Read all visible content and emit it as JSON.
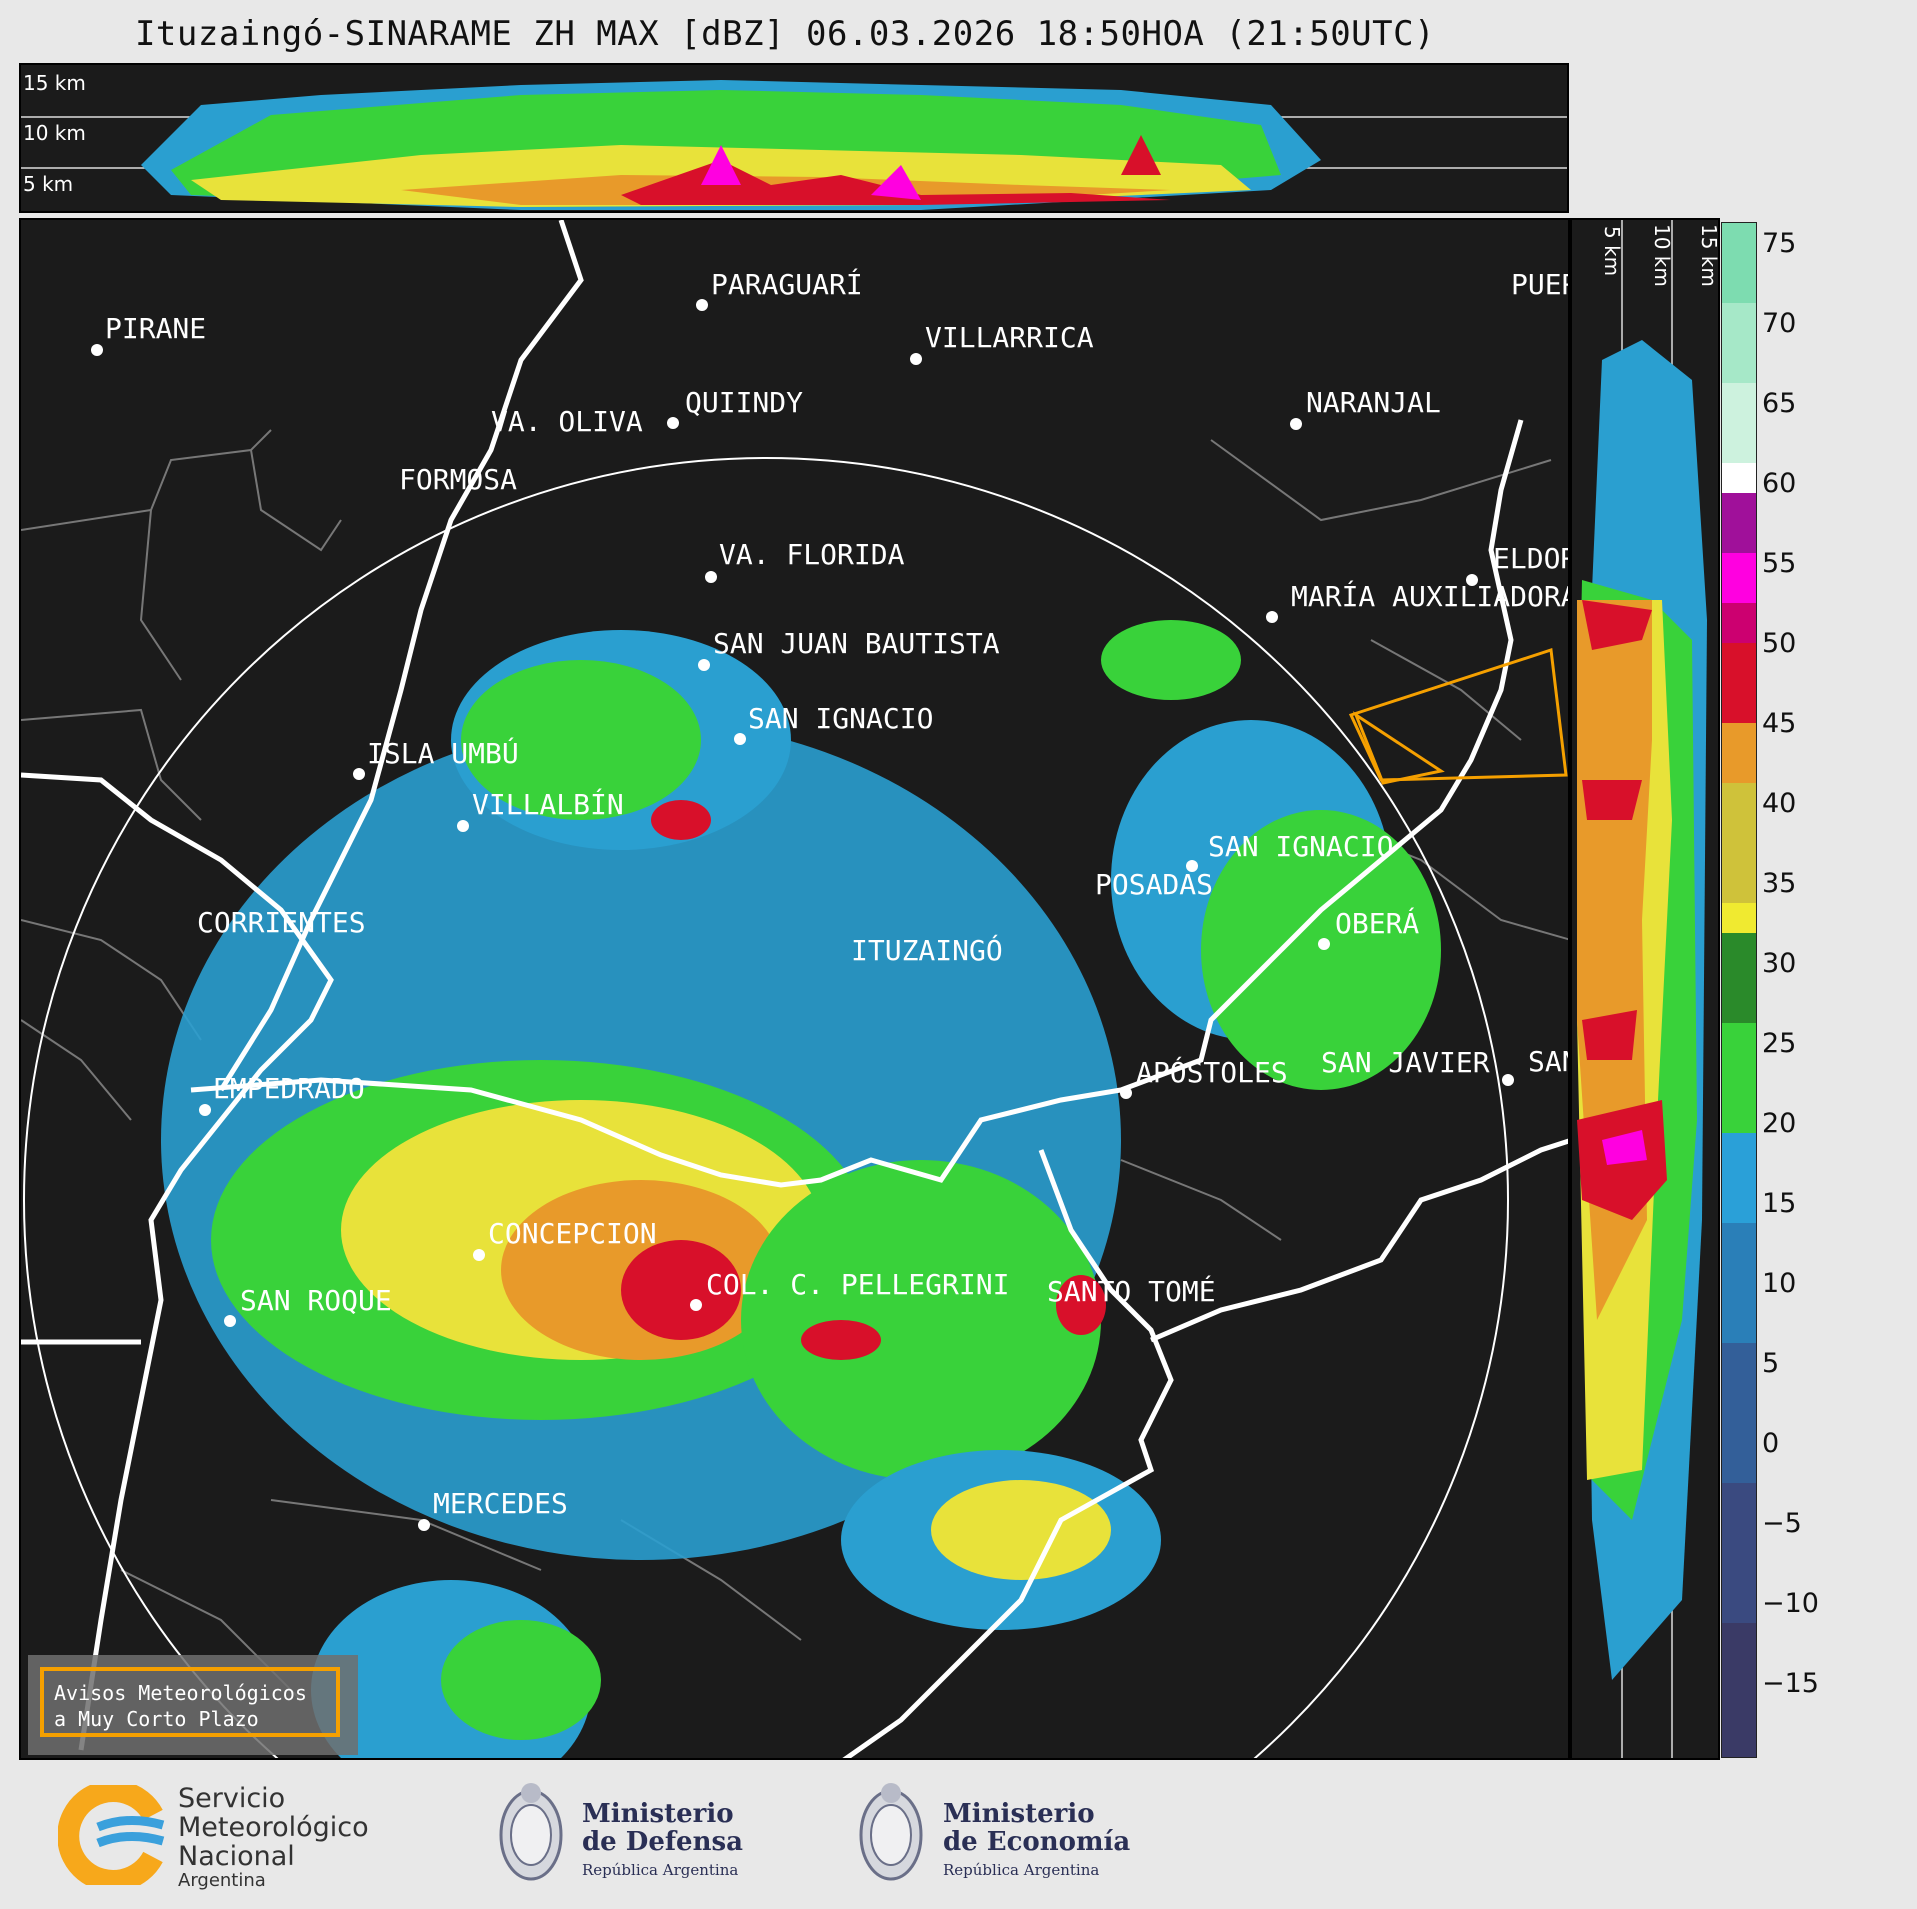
{
  "title": "Ituzaingó-SINARAME ZH MAX [dBZ] 06.03.2026 18:50HOA (21:50UTC)",
  "height_labels": [
    "15 km",
    "10 km",
    "5 km"
  ],
  "places": [
    {
      "name": "PIRANE"
    },
    {
      "name": "PARAGUARÍ"
    },
    {
      "name": "VILLARRICA"
    },
    {
      "name": "VA. OLIVA"
    },
    {
      "name": "QUIINDY"
    },
    {
      "name": "FORMOSA"
    },
    {
      "name": "NARANJAL"
    },
    {
      "name": "PUERTO"
    },
    {
      "name": "VA. FLORIDA"
    },
    {
      "name": "ELDORADO"
    },
    {
      "name": "MARÍA AUXILIADORA"
    },
    {
      "name": "SAN JUAN BAUTISTA"
    },
    {
      "name": "SAN IGNACIO"
    },
    {
      "name": "ISLA UMBÚ"
    },
    {
      "name": "VILLALBÍN"
    },
    {
      "name": "SAN IGNACIO"
    },
    {
      "name": "POSADAS"
    },
    {
      "name": "CORRIENTES"
    },
    {
      "name": "ITUZAINGÓ"
    },
    {
      "name": "OBERÁ"
    },
    {
      "name": "APÓSTOLES"
    },
    {
      "name": "SAN JAVIER"
    },
    {
      "name": "SAN"
    },
    {
      "name": "EMPEDRADO"
    },
    {
      "name": "CONCEPCION"
    },
    {
      "name": "COL. C. PELLEGRINI"
    },
    {
      "name": "SANTO TOMÉ"
    },
    {
      "name": "SAN ROQUE"
    },
    {
      "name": "MERCEDES"
    }
  ],
  "colorbar": {
    "unit": "dBZ",
    "ticks": [
      "75",
      "70",
      "65",
      "60",
      "55",
      "50",
      "45",
      "40",
      "35",
      "30",
      "25",
      "20",
      "15",
      "10",
      "5",
      "0",
      "−5",
      "−10",
      "−15"
    ],
    "range": [
      -20,
      77
    ]
  },
  "warning_box": {
    "line1": "Avisos Meteorológicos",
    "line2": "a Muy Corto Plazo"
  },
  "logos": {
    "smn": {
      "line1": "Servicio",
      "line2": "Meteorológico",
      "line3": "Nacional",
      "line4": "Argentina"
    },
    "defensa": {
      "line1": "Ministerio",
      "line2": "de Defensa",
      "line3": "República Argentina"
    },
    "economia": {
      "line1": "Ministerio",
      "line2": "de Economía",
      "line3": "República Argentina"
    }
  },
  "colors": {
    "background": "#1b1b1b",
    "border_river": "#ffffff",
    "warning": "#f5a000"
  }
}
